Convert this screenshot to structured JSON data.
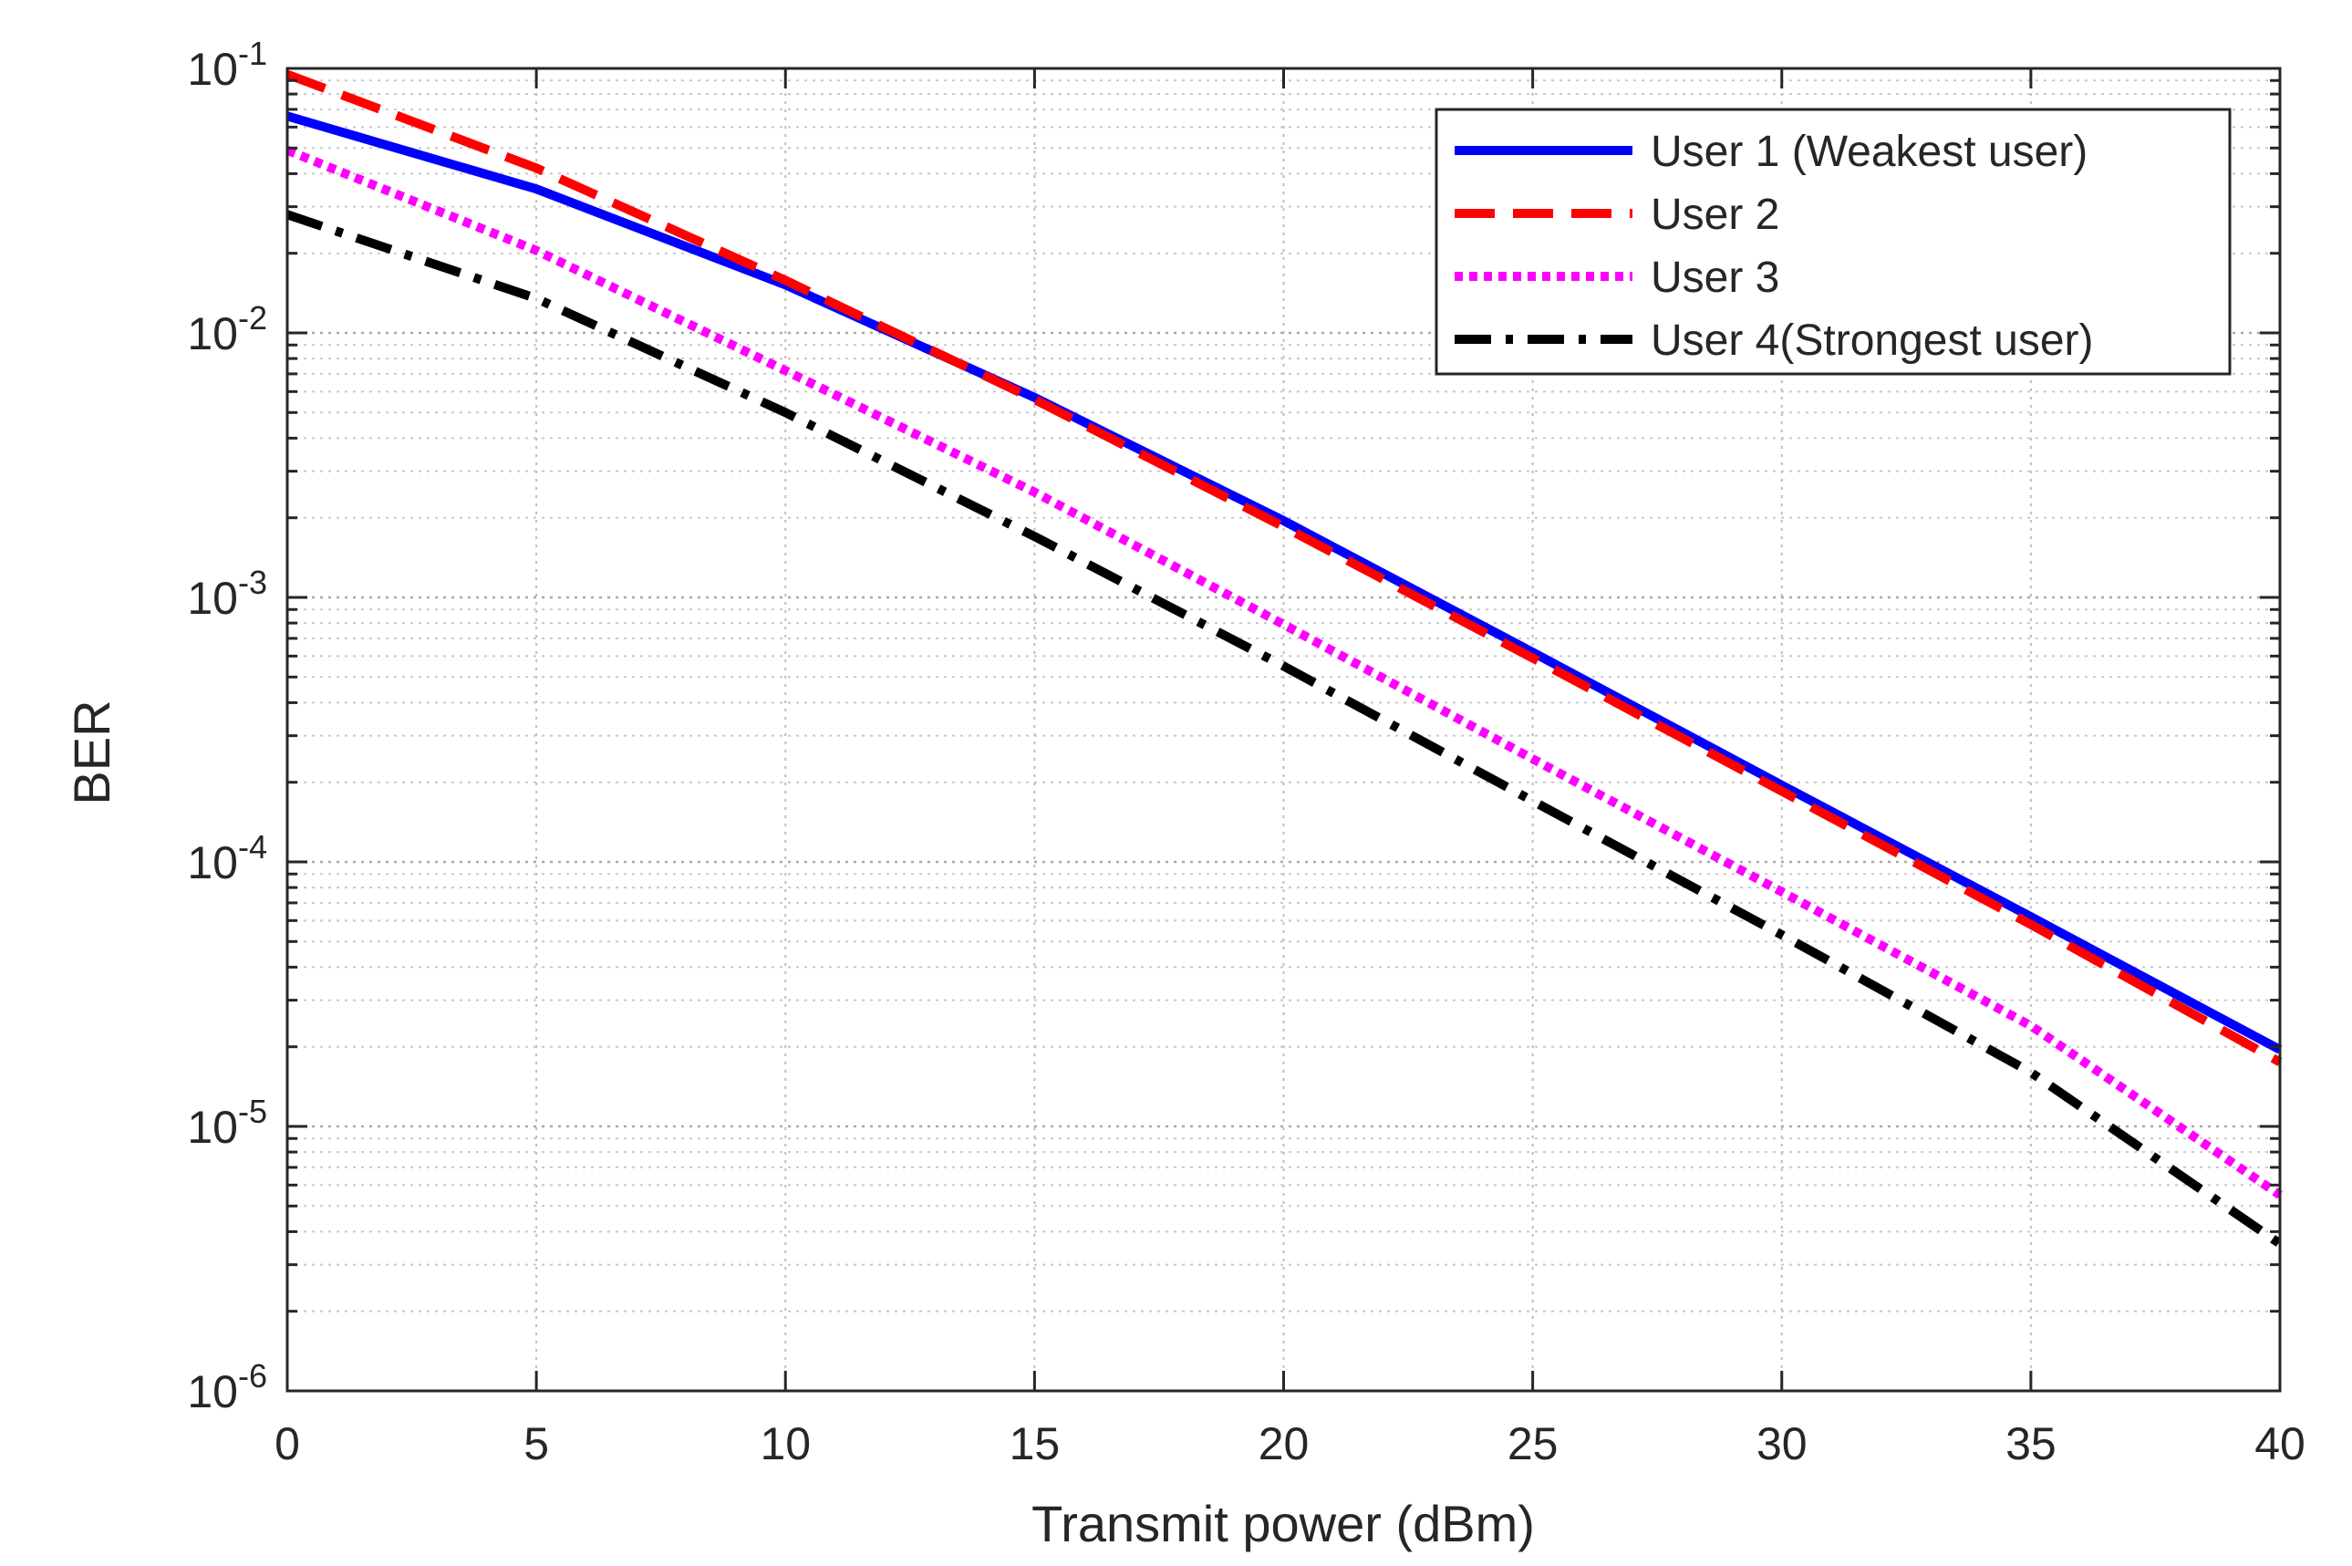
{
  "chart_data": {
    "type": "line",
    "title": "",
    "xlabel": "Transmit power (dBm)",
    "ylabel": "BER",
    "xlim": [
      0,
      40
    ],
    "ylim": [
      1e-06,
      0.1
    ],
    "yscale": "log",
    "grid": true,
    "legend_position": "top-right",
    "x_ticks": [
      0,
      5,
      10,
      15,
      20,
      25,
      30,
      35,
      40
    ],
    "y_ticks": [
      {
        "value": 1e-06,
        "base": "10",
        "exp": "-6"
      },
      {
        "value": 1e-05,
        "base": "10",
        "exp": "-5"
      },
      {
        "value": 0.0001,
        "base": "10",
        "exp": "-4"
      },
      {
        "value": 0.001,
        "base": "10",
        "exp": "-3"
      },
      {
        "value": 0.01,
        "base": "10",
        "exp": "-2"
      },
      {
        "value": 0.1,
        "base": "10",
        "exp": "-1"
      }
    ],
    "x": [
      0,
      5,
      10,
      15,
      20,
      25,
      30,
      35,
      40
    ],
    "series": [
      {
        "name": "User 1 (Weakest user)",
        "color": "#0000ff",
        "style": "solid",
        "values": [
          0.066,
          0.035,
          0.0152,
          0.0057,
          0.00195,
          0.00062,
          0.000195,
          6.2e-05,
          1.95e-05
        ]
      },
      {
        "name": "User 2",
        "color": "#ff0000",
        "style": "dashed",
        "values": [
          0.095,
          0.042,
          0.0158,
          0.0056,
          0.00185,
          0.00059,
          0.000185,
          5.8e-05,
          1.75e-05
        ]
      },
      {
        "name": "User 3",
        "color": "#ff00ff",
        "style": "dotted",
        "values": [
          0.049,
          0.0205,
          0.0072,
          0.0025,
          0.00079,
          0.000245,
          7.7e-05,
          2.4e-05,
          5.5e-06
        ]
      },
      {
        "name": "User 4(Strongest user)",
        "color": "#000000",
        "style": "dashdot",
        "values": [
          0.028,
          0.0135,
          0.005,
          0.0017,
          0.00055,
          0.00017,
          5.3e-05,
          1.6e-05,
          3.6e-06
        ]
      }
    ]
  }
}
